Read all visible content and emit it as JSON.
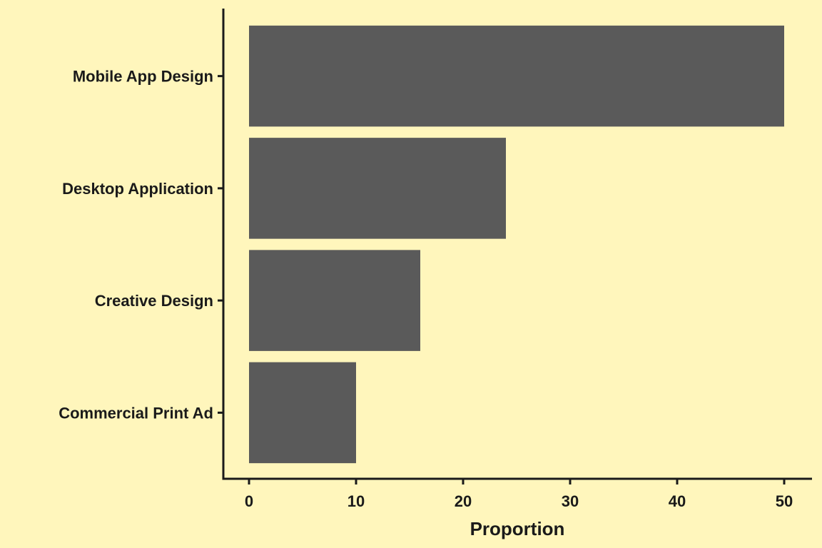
{
  "chart_data": {
    "type": "bar",
    "orientation": "horizontal",
    "categories": [
      "Mobile App Design",
      "Desktop Application",
      "Creative Design",
      "Commercial Print Ad"
    ],
    "values": [
      50,
      24,
      16,
      10
    ],
    "title": "",
    "xlabel": "Proportion",
    "ylabel": "",
    "xlim": [
      -2.4,
      52.6
    ],
    "xticks": [
      0,
      10,
      20,
      30,
      40,
      50
    ],
    "grid": false,
    "legend": "none"
  },
  "colors": {
    "background": "#FFF6BC",
    "bar": "#5A5A5A",
    "axis": "#1A1A1A"
  }
}
